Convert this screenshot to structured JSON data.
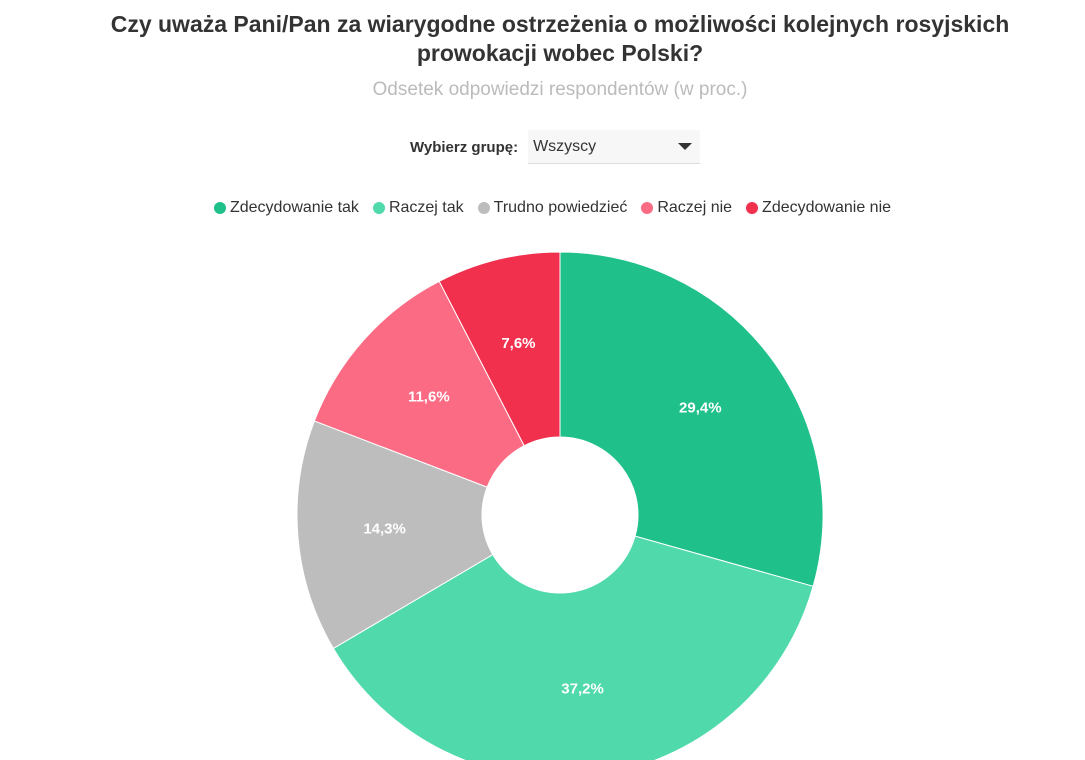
{
  "chart_data": {
    "type": "donut",
    "title": "Czy uważa Pani/Pan za wiarygodne ostrzeżenia o możliwości kolejnych rosyjskich prowokacji wobec Polski?",
    "subtitle": "Odsetek odpowiedzi respondentów (w proc.)",
    "categories": [
      "Zdecydowanie tak",
      "Raczej tak",
      "Trudno powiedzieć",
      "Raczej nie",
      "Zdecydowanie nie"
    ],
    "values": [
      29.4,
      37.2,
      14.3,
      11.6,
      7.6
    ],
    "value_labels": [
      "29,4%",
      "37,2%",
      "14,3%",
      "11,6%",
      "7,6%"
    ],
    "colors": [
      "#20c08b",
      "#50d9ab",
      "#bdbdbd",
      "#fb6b84",
      "#f1304e"
    ],
    "legend": "top"
  },
  "controls": {
    "label": "Wybierz grupę:",
    "selected": "Wszyscy"
  }
}
